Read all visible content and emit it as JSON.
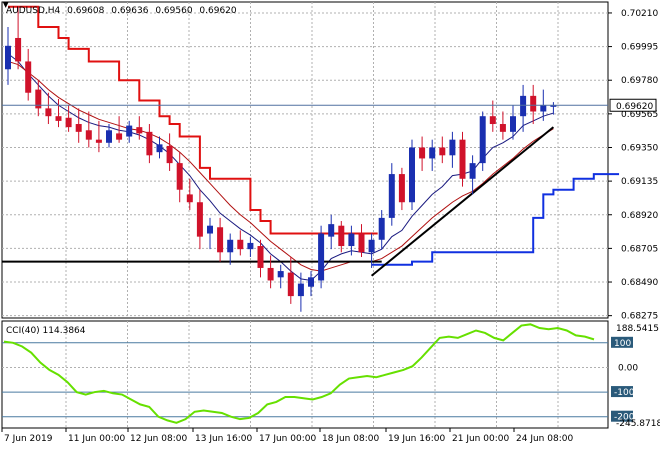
{
  "header": {
    "symbol": "AUDUSD,H4",
    "open": "0.69608",
    "high": "0.69636",
    "low": "0.69560",
    "close": "0.69620"
  },
  "price_axis": {
    "ticks": [
      "0.70210",
      "0.69995",
      "0.69780",
      "0.69565",
      "0.69350",
      "0.69135",
      "0.68920",
      "0.68705",
      "0.68490",
      "0.68275"
    ],
    "current_price_label": "0.69620"
  },
  "cci_panel": {
    "title": "CCI(40) 114.3864",
    "scale_max": "188.5415",
    "scale_min": "-245.8718",
    "levels": [
      "100",
      "0.00",
      "-100",
      "-200"
    ]
  },
  "time_axis": {
    "labels": [
      "7 Jun 2019",
      "11 Jun 00:00",
      "12 Jun 08:00",
      "13 Jun 16:00",
      "17 Jun 00:00",
      "18 Jun 08:00",
      "19 Jun 16:00",
      "21 Jun 00:00",
      "24 Jun 08:00"
    ]
  },
  "colors": {
    "bull": "#1a2fb0",
    "bear": "#d0122a",
    "upper_channel": "#e01010",
    "lower_channel": "#1030e0",
    "ma_dark": "#1a1a80",
    "ma_red": "#b01010",
    "cci_line": "#66e000",
    "grid": "#b0b0b0",
    "price_label_bg": "#ffffff"
  },
  "chart_data": {
    "type": "candlestick",
    "ylim": [
      0.6826,
      0.7028
    ],
    "candles": [
      {
        "o": 0.6985,
        "h": 0.7012,
        "l": 0.6975,
        "c": 0.7
      },
      {
        "o": 0.7005,
        "h": 0.7025,
        "l": 0.6985,
        "c": 0.699
      },
      {
        "o": 0.699,
        "h": 0.6998,
        "l": 0.6965,
        "c": 0.697
      },
      {
        "o": 0.6972,
        "h": 0.6978,
        "l": 0.6955,
        "c": 0.696
      },
      {
        "o": 0.696,
        "h": 0.697,
        "l": 0.695,
        "c": 0.6955
      },
      {
        "o": 0.6955,
        "h": 0.6966,
        "l": 0.6948,
        "c": 0.6952
      },
      {
        "o": 0.6954,
        "h": 0.6962,
        "l": 0.6945,
        "c": 0.6948
      },
      {
        "o": 0.695,
        "h": 0.696,
        "l": 0.6938,
        "c": 0.6945
      },
      {
        "o": 0.6946,
        "h": 0.6958,
        "l": 0.6935,
        "c": 0.694
      },
      {
        "o": 0.694,
        "h": 0.6952,
        "l": 0.6932,
        "c": 0.6938
      },
      {
        "o": 0.6938,
        "h": 0.695,
        "l": 0.6935,
        "c": 0.6946
      },
      {
        "o": 0.6944,
        "h": 0.6955,
        "l": 0.6938,
        "c": 0.694
      },
      {
        "o": 0.6942,
        "h": 0.6952,
        "l": 0.6938,
        "c": 0.6949
      },
      {
        "o": 0.6948,
        "h": 0.6955,
        "l": 0.694,
        "c": 0.6944
      },
      {
        "o": 0.6945,
        "h": 0.695,
        "l": 0.6925,
        "c": 0.693
      },
      {
        "o": 0.6932,
        "h": 0.6942,
        "l": 0.6928,
        "c": 0.6937
      },
      {
        "o": 0.6936,
        "h": 0.6944,
        "l": 0.692,
        "c": 0.6925
      },
      {
        "o": 0.6925,
        "h": 0.6932,
        "l": 0.69,
        "c": 0.6908
      },
      {
        "o": 0.6905,
        "h": 0.6915,
        "l": 0.6895,
        "c": 0.69
      },
      {
        "o": 0.69,
        "h": 0.6908,
        "l": 0.687,
        "c": 0.6878
      },
      {
        "o": 0.688,
        "h": 0.689,
        "l": 0.687,
        "c": 0.6885
      },
      {
        "o": 0.6884,
        "h": 0.689,
        "l": 0.6862,
        "c": 0.6868
      },
      {
        "o": 0.6868,
        "h": 0.688,
        "l": 0.686,
        "c": 0.6876
      },
      {
        "o": 0.6876,
        "h": 0.6882,
        "l": 0.6866,
        "c": 0.687
      },
      {
        "o": 0.687,
        "h": 0.6878,
        "l": 0.6865,
        "c": 0.6874
      },
      {
        "o": 0.6872,
        "h": 0.6876,
        "l": 0.6852,
        "c": 0.6858
      },
      {
        "o": 0.6858,
        "h": 0.6866,
        "l": 0.6845,
        "c": 0.685
      },
      {
        "o": 0.6852,
        "h": 0.686,
        "l": 0.6845,
        "c": 0.6856
      },
      {
        "o": 0.6855,
        "h": 0.6865,
        "l": 0.6835,
        "c": 0.684
      },
      {
        "o": 0.684,
        "h": 0.6855,
        "l": 0.683,
        "c": 0.6848
      },
      {
        "o": 0.6846,
        "h": 0.6856,
        "l": 0.684,
        "c": 0.6852
      },
      {
        "o": 0.685,
        "h": 0.6885,
        "l": 0.6845,
        "c": 0.688
      },
      {
        "o": 0.6878,
        "h": 0.6892,
        "l": 0.687,
        "c": 0.6886
      },
      {
        "o": 0.6885,
        "h": 0.6888,
        "l": 0.6868,
        "c": 0.6872
      },
      {
        "o": 0.6872,
        "h": 0.6885,
        "l": 0.6866,
        "c": 0.688
      },
      {
        "o": 0.688,
        "h": 0.6886,
        "l": 0.6865,
        "c": 0.6868
      },
      {
        "o": 0.6868,
        "h": 0.688,
        "l": 0.6858,
        "c": 0.6876
      },
      {
        "o": 0.6876,
        "h": 0.6895,
        "l": 0.687,
        "c": 0.689
      },
      {
        "o": 0.689,
        "h": 0.6925,
        "l": 0.6885,
        "c": 0.6918
      },
      {
        "o": 0.6918,
        "h": 0.6922,
        "l": 0.6895,
        "c": 0.69
      },
      {
        "o": 0.69,
        "h": 0.694,
        "l": 0.6895,
        "c": 0.6935
      },
      {
        "o": 0.6935,
        "h": 0.6942,
        "l": 0.692,
        "c": 0.6928
      },
      {
        "o": 0.6928,
        "h": 0.694,
        "l": 0.692,
        "c": 0.6935
      },
      {
        "o": 0.6935,
        "h": 0.6942,
        "l": 0.6925,
        "c": 0.693
      },
      {
        "o": 0.693,
        "h": 0.6945,
        "l": 0.6922,
        "c": 0.694
      },
      {
        "o": 0.694,
        "h": 0.6945,
        "l": 0.691,
        "c": 0.6915
      },
      {
        "o": 0.6915,
        "h": 0.693,
        "l": 0.6905,
        "c": 0.6925
      },
      {
        "o": 0.6925,
        "h": 0.6958,
        "l": 0.692,
        "c": 0.6955
      },
      {
        "o": 0.6955,
        "h": 0.6965,
        "l": 0.6945,
        "c": 0.695
      },
      {
        "o": 0.695,
        "h": 0.6958,
        "l": 0.694,
        "c": 0.6945
      },
      {
        "o": 0.6945,
        "h": 0.6962,
        "l": 0.694,
        "c": 0.6955
      },
      {
        "o": 0.6955,
        "h": 0.6975,
        "l": 0.6945,
        "c": 0.6968
      },
      {
        "o": 0.6968,
        "h": 0.6975,
        "l": 0.695,
        "c": 0.6958
      },
      {
        "o": 0.6958,
        "h": 0.6972,
        "l": 0.6952,
        "c": 0.6962
      },
      {
        "o": 0.6961,
        "h": 0.6964,
        "l": 0.6956,
        "c": 0.6962
      }
    ],
    "ma_dark": [
      0.6995,
      0.699,
      0.6982,
      0.6975,
      0.6968,
      0.6962,
      0.6958,
      0.6954,
      0.6951,
      0.6949,
      0.6948,
      0.6946,
      0.6945,
      0.6943,
      0.694,
      0.6936,
      0.6931,
      0.6924,
      0.6917,
      0.6908,
      0.6901,
      0.6893,
      0.6888,
      0.6883,
      0.6879,
      0.6874,
      0.6867,
      0.6862,
      0.6856,
      0.6851,
      0.685,
      0.6856,
      0.6864,
      0.6867,
      0.6869,
      0.6868,
      0.6867,
      0.687,
      0.6878,
      0.6882,
      0.6891,
      0.6898,
      0.6905,
      0.691,
      0.6917,
      0.6918,
      0.692,
      0.6928,
      0.6935,
      0.6938,
      0.6942,
      0.6949,
      0.6952,
      0.6955,
      0.6957
    ],
    "ma_red": [
      0.699,
      0.6988,
      0.6983,
      0.6978,
      0.6972,
      0.6967,
      0.6963,
      0.6959,
      0.6956,
      0.6953,
      0.6951,
      0.6949,
      0.6947,
      0.6946,
      0.6944,
      0.6941,
      0.6937,
      0.6932,
      0.6926,
      0.6919,
      0.6912,
      0.6905,
      0.6898,
      0.6892,
      0.6887,
      0.6881,
      0.6875,
      0.687,
      0.6865,
      0.686,
      0.6857,
      0.6856,
      0.6858,
      0.686,
      0.6862,
      0.6862,
      0.6862,
      0.6864,
      0.6868,
      0.6872,
      0.6878,
      0.6884,
      0.689,
      0.6895,
      0.69,
      0.6904,
      0.6907,
      0.6912,
      0.6918,
      0.6923,
      0.6928,
      0.6934,
      0.6939,
      0.6943,
      0.6947
    ],
    "upper_channel": [
      0.7025,
      0.7025,
      0.7025,
      0.7012,
      0.7012,
      0.7005,
      0.6998,
      0.6998,
      0.699,
      0.699,
      0.699,
      0.6978,
      0.6978,
      0.6965,
      0.6965,
      0.6955,
      0.695,
      0.6942,
      0.6942,
      0.6922,
      0.6915,
      0.6915,
      0.6915,
      0.6915,
      0.6895,
      0.6888,
      0.688,
      0.688,
      0.688,
      0.688,
      0.688,
      0.688,
      0.688,
      0.688,
      0.688,
      0.688,
      0.688
    ],
    "lower_channel_start": 36,
    "lower_channel": [
      0.686,
      0.686,
      0.686,
      0.686,
      0.6862,
      0.6862,
      0.6868,
      0.6868,
      0.6868,
      0.6868,
      0.6868,
      0.6868,
      0.6868,
      0.6868,
      0.6868,
      0.6868,
      0.689,
      0.6905,
      0.6908,
      0.6908,
      0.6915,
      0.6915,
      0.6918,
      0.6918,
      0.6918
    ],
    "support_level": 0.6862,
    "trendline": {
      "from": {
        "i": 36,
        "p": 0.6853
      },
      "to": {
        "i": 54,
        "p": 0.6948
      }
    },
    "cci_ylim": [
      -245.8718,
      188.5415
    ],
    "cci": [
      105,
      100,
      85,
      60,
      20,
      -10,
      -30,
      -60,
      -100,
      -110,
      -100,
      -95,
      -105,
      -110,
      -130,
      -150,
      -160,
      -200,
      -215,
      -225,
      -210,
      -180,
      -175,
      -180,
      -185,
      -200,
      -210,
      -205,
      -185,
      -150,
      -140,
      -120,
      -120,
      -125,
      -130,
      -120,
      -105,
      -70,
      -45,
      -40,
      -35,
      -40,
      -30,
      -20,
      -10,
      5,
      40,
      80,
      120,
      125,
      120,
      135,
      150,
      140,
      120,
      110,
      140,
      170,
      175,
      160,
      155,
      160,
      150,
      130,
      125,
      114
    ]
  }
}
